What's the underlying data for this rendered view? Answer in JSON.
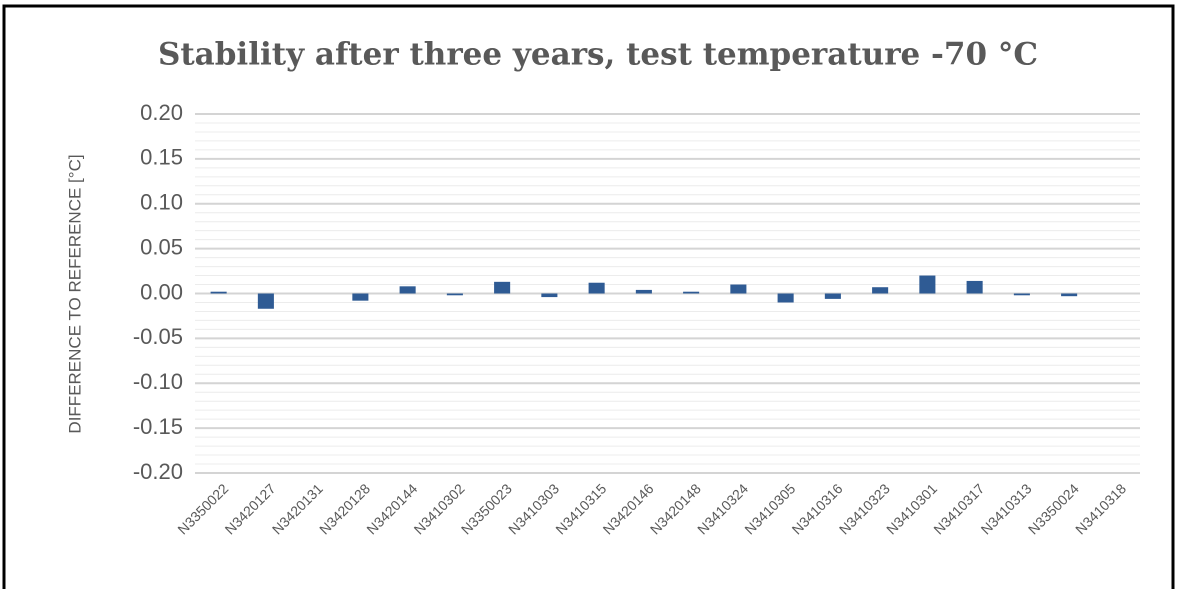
{
  "chart_data": {
    "type": "bar",
    "title": "Stability after three years, test temperature -70 °C",
    "y_label": "DIFFERENCE TO REFERENCE [°C]",
    "categories": [
      "N3350022",
      "N3420127",
      "N3420131",
      "N3420128",
      "N3420144",
      "N3410302",
      "N3350023",
      "N3410303",
      "N3410315",
      "N3420146",
      "N3420148",
      "N3410324",
      "N3410305",
      "N3410316",
      "N3410323",
      "N3410301",
      "N3410317",
      "N3410313",
      "N3350024",
      "N3410318"
    ],
    "values": [
      0.002,
      -0.017,
      0,
      -0.008,
      0.008,
      -0.002,
      0.013,
      -0.004,
      0.012,
      0.004,
      0.002,
      0.01,
      -0.01,
      -0.006,
      0.007,
      0.02,
      0.014,
      -0.002,
      -0.003,
      0
    ],
    "color": "#2f5b94",
    "ylim": [
      -0.2,
      0.2
    ],
    "yticks": [
      {
        "value": -0.2,
        "label": "-0.20"
      },
      {
        "value": -0.15,
        "label": "-0.15"
      },
      {
        "value": -0.1,
        "label": "-0.10"
      },
      {
        "value": -0.05,
        "label": "-0.05"
      },
      {
        "value": 0,
        "label": "0.00"
      },
      {
        "value": 0.05,
        "label": "0.05"
      },
      {
        "value": 0.1,
        "label": "0.10"
      },
      {
        "value": 0.15,
        "label": "0.15"
      },
      {
        "value": 0.2,
        "label": "0.20"
      }
    ],
    "grid": true,
    "minor_grid": true
  }
}
